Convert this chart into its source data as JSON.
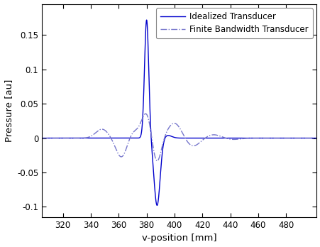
{
  "xlabel": "v-position [mm]",
  "ylabel": "Pressure [au]",
  "xlim": [
    305,
    502
  ],
  "ylim": [
    -0.115,
    0.195
  ],
  "xticks": [
    320,
    340,
    360,
    380,
    400,
    420,
    440,
    460,
    480
  ],
  "yticks": [
    -0.1,
    -0.05,
    0.0,
    0.05,
    0.1,
    0.15
  ],
  "idealized_color": "#0000CC",
  "finite_color": "#7777CC",
  "idealized_label": "Idealized Transducer",
  "finite_label": "Finite Bandwidth Transducer",
  "background_color": "#ffffff",
  "legend_fontsize": 8.5,
  "axis_fontsize": 9.5,
  "tick_fontsize": 8.5
}
